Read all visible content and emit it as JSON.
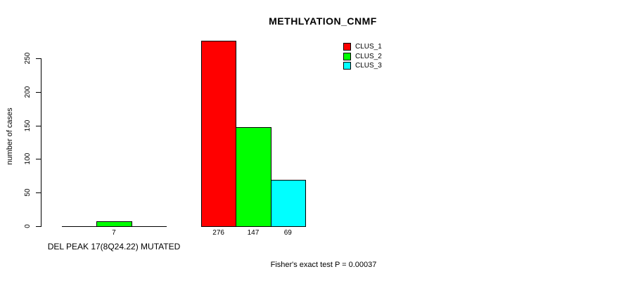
{
  "chart_data": {
    "type": "bar",
    "title": "METHLYATION_CNMF",
    "ylabel": "number of cases",
    "xlabel": "DEL PEAK 17(8Q24.22) MUTATED",
    "yticks": [
      0,
      50,
      100,
      150,
      200,
      250
    ],
    "ylim": [
      0,
      280
    ],
    "grid": false,
    "legend_position": "top-right",
    "legend_entries": [
      {
        "label": "CLUS_1",
        "color": "#ff0000"
      },
      {
        "label": "CLUS_2",
        "color": "#00ff00"
      },
      {
        "label": "CLUS_3",
        "color": "#00ffff"
      }
    ],
    "groups": [
      {
        "label": "DEL PEAK 17(8Q24.22) MUTATED",
        "values": [
          0,
          7,
          0
        ],
        "value_labels": [
          "",
          "7",
          ""
        ]
      },
      {
        "label": "",
        "values": [
          276,
          147,
          69
        ],
        "value_labels": [
          "276",
          "147",
          "69"
        ]
      }
    ],
    "annotation": "Fisher's exact test P = 0.00037"
  }
}
